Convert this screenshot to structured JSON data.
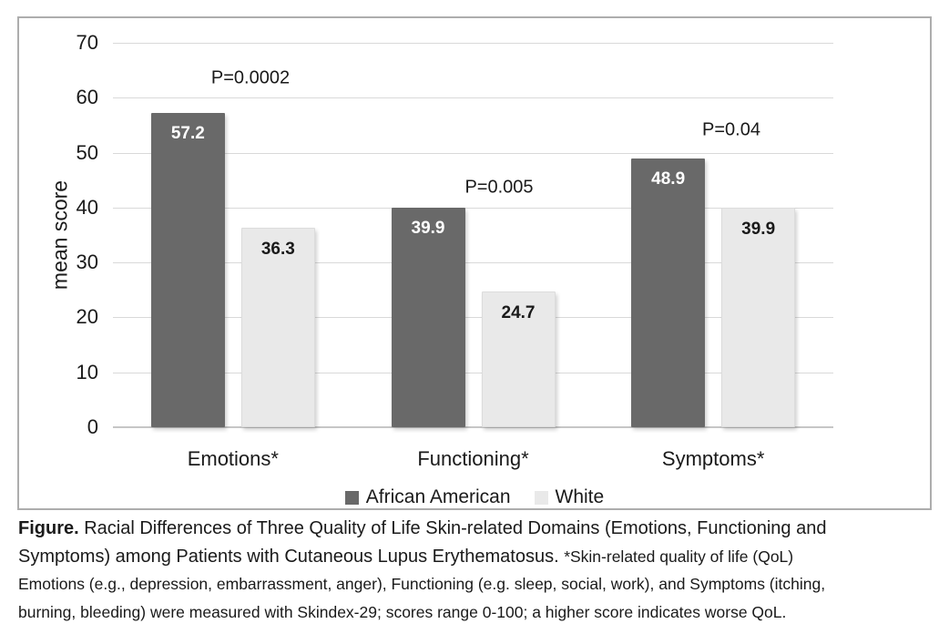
{
  "chart_data": {
    "type": "bar",
    "title": "",
    "xlabel": "",
    "ylabel": "mean score",
    "ylim": [
      0,
      70
    ],
    "yticks": [
      0,
      10,
      20,
      30,
      40,
      50,
      60,
      70
    ],
    "grid": true,
    "legend_position": "bottom",
    "categories": [
      "Emotions*",
      "Functioning*",
      "Symptoms*"
    ],
    "series": [
      {
        "name": "African American",
        "color": "#696969",
        "label_color": "#ffffff",
        "values": [
          57.2,
          39.9,
          48.9
        ]
      },
      {
        "name": "White",
        "color": "#e9e9e9",
        "label_color": "#1a1a1a",
        "values": [
          36.3,
          24.7,
          39.9
        ]
      }
    ],
    "annotations": [
      {
        "label": "P=0.0002",
        "x": 254,
        "y": 66
      },
      {
        "label": "P=0.005",
        "x": 527,
        "y": 186
      },
      {
        "label": "P=0.04",
        "x": 782,
        "y": 123
      }
    ]
  },
  "colors": {
    "frame_border": "#adadad",
    "gridline": "#d9d9d9",
    "axis_line": "#c6c6c6",
    "text": "#1a1a1a"
  },
  "caption": {
    "lines": [
      [
        {
          "text": "Figure.",
          "style": "b"
        },
        {
          "text": " Racial Differences of Three Quality of Life Skin-related Domains (Emotions, Functioning and",
          "style": "l"
        }
      ],
      [
        {
          "text": "Symptoms) among Patients with Cutaneous Lupus Erythematosus. ",
          "style": "l"
        },
        {
          "text": "*Skin-related quality of life (QoL)",
          "style": "s"
        }
      ],
      [
        {
          "text": "Emotions (e.g., depression, embarrassment, anger), Functioning (e.g. sleep, social, work), and Symptoms (itching,",
          "style": "s"
        }
      ],
      [
        {
          "text": "burning, bleeding) were measured with Skindex-29; scores range 0-100; a higher score indicates worse QoL.",
          "style": "s"
        }
      ]
    ]
  }
}
